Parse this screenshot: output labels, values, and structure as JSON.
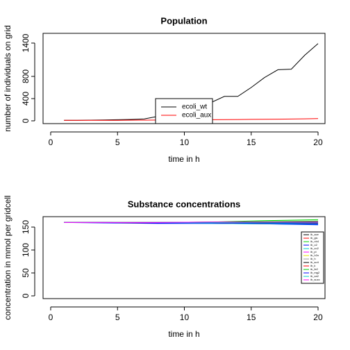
{
  "chart_data": [
    {
      "type": "line",
      "title": "Population",
      "x_label": "time in h",
      "y_label": "number of individuals on grid",
      "x": [
        1,
        2,
        3,
        4,
        5,
        6,
        7,
        8,
        9,
        10,
        11,
        12,
        13,
        14,
        15,
        16,
        17,
        18,
        19,
        20
      ],
      "series": [
        {
          "name": "ecoli_wt",
          "color": "#000000",
          "values": [
            10,
            10,
            12,
            15,
            20,
            25,
            35,
            80,
            150,
            220,
            300,
            330,
            440,
            440,
            600,
            780,
            920,
            930,
            1180,
            1390
          ]
        },
        {
          "name": "ecoli_aux",
          "color": "#ff0000",
          "values": [
            10,
            10,
            10,
            10,
            10,
            12,
            12,
            14,
            15,
            16,
            18,
            20,
            22,
            24,
            26,
            28,
            30,
            33,
            36,
            40
          ]
        }
      ],
      "xlim": [
        -0.57,
        20.52
      ],
      "xticks": [
        0,
        5,
        10,
        15,
        20
      ],
      "ylim": [
        -50,
        1575
      ],
      "yticks": [
        0,
        400,
        800,
        1400
      ],
      "legend": "center"
    },
    {
      "type": "line",
      "title": "Substance concentrations",
      "x_label": "time in h",
      "y_label": "concentration in mmol per gridcell",
      "x": [
        1,
        4,
        8,
        12,
        16,
        20
      ],
      "series": [
        {
          "name": "ib_ace",
          "color": "#000000",
          "values": [
            160,
            160,
            159,
            159,
            158,
            157
          ]
        },
        {
          "name": "ib_glc",
          "color": "#ff0000",
          "values": [
            160,
            160,
            159,
            159,
            159,
            158
          ]
        },
        {
          "name": "ib_nh4",
          "color": "#00cd00",
          "values": [
            160,
            160,
            160,
            161,
            164,
            166
          ]
        },
        {
          "name": "ib_o2",
          "color": "#0000ff",
          "values": [
            160,
            159,
            158,
            158,
            157,
            155
          ]
        },
        {
          "name": "ib_co2",
          "color": "#00cccc",
          "values": [
            160,
            160,
            159,
            158,
            157,
            156
          ]
        },
        {
          "name": "ib_pi",
          "color": "#ff00ff",
          "values": [
            160,
            160,
            160,
            160,
            161,
            162
          ]
        },
        {
          "name": "ib_h2o",
          "color": "#e6e600",
          "values": [
            160,
            160,
            160,
            160,
            160,
            160
          ]
        },
        {
          "name": "ib_h",
          "color": "#999999",
          "values": [
            160,
            160,
            159,
            159,
            159,
            159
          ]
        },
        {
          "name": "ib_so4",
          "color": "#000000",
          "values": [
            160,
            160,
            160,
            160,
            160,
            160
          ]
        },
        {
          "name": "ib_k",
          "color": "#ff0000",
          "values": [
            160,
            160,
            159,
            159,
            158,
            158
          ]
        },
        {
          "name": "ib_fe2",
          "color": "#00cd00",
          "values": [
            160,
            160,
            160,
            161,
            162,
            163
          ]
        },
        {
          "name": "ib_mg2",
          "color": "#0000ff",
          "values": [
            160,
            160,
            159,
            159,
            158,
            157
          ]
        },
        {
          "name": "ib_ca2",
          "color": "#00cccc",
          "values": [
            160,
            160,
            160,
            160,
            159,
            159
          ]
        },
        {
          "name": "ib_succ",
          "color": "#ff00ff",
          "values": [
            160,
            160,
            160,
            161,
            161,
            161
          ]
        }
      ],
      "xlim": [
        -0.57,
        20.52
      ],
      "xticks": [
        0,
        5,
        10,
        15,
        20
      ],
      "ylim": [
        -6,
        172.7
      ],
      "yticks": [
        0,
        50,
        100,
        150
      ],
      "legend": "right"
    }
  ]
}
